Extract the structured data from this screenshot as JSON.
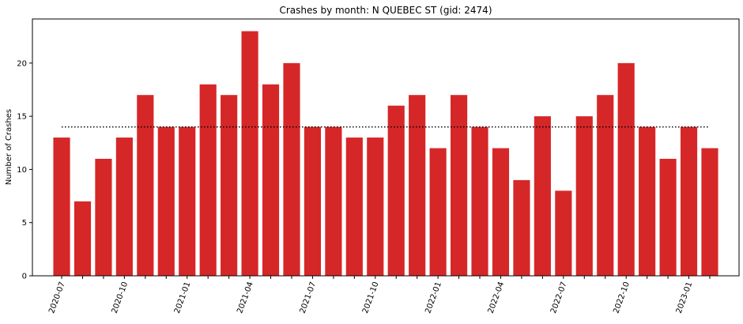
{
  "chart_data": {
    "type": "bar",
    "title": "Crashes by month: N QUEBEC ST (gid: 2474)",
    "xlabel": "",
    "ylabel": "Number of Crashes",
    "categories": [
      "2020-07",
      "2020-08",
      "2020-09",
      "2020-10",
      "2020-11",
      "2020-12",
      "2021-01",
      "2021-02",
      "2021-03",
      "2021-04",
      "2021-05",
      "2021-06",
      "2021-07",
      "2021-08",
      "2021-09",
      "2021-10",
      "2021-11",
      "2021-12",
      "2022-01",
      "2022-02",
      "2022-03",
      "2022-04",
      "2022-05",
      "2022-06",
      "2022-07",
      "2022-08",
      "2022-09",
      "2022-10",
      "2022-11",
      "2022-12",
      "2023-01",
      "2023-02"
    ],
    "values": [
      13,
      7,
      11,
      13,
      17,
      14,
      14,
      18,
      17,
      23,
      18,
      20,
      14,
      14,
      13,
      13,
      16,
      17,
      12,
      17,
      14,
      12,
      9,
      15,
      8,
      15,
      17,
      20,
      14,
      11,
      14,
      12
    ],
    "x_tick_labels": [
      "2020-07",
      "2020-10",
      "2021-01",
      "2021-04",
      "2021-07",
      "2021-10",
      "2022-01",
      "2022-04",
      "2022-07",
      "2022-10",
      "2023-01"
    ],
    "y_ticks": [
      0,
      5,
      10,
      15,
      20
    ],
    "ylim": [
      0,
      24.15
    ],
    "reference_line": {
      "value": 14,
      "style": "dotted"
    },
    "bar_color": "#d62728",
    "grid": false,
    "legend": "none"
  }
}
